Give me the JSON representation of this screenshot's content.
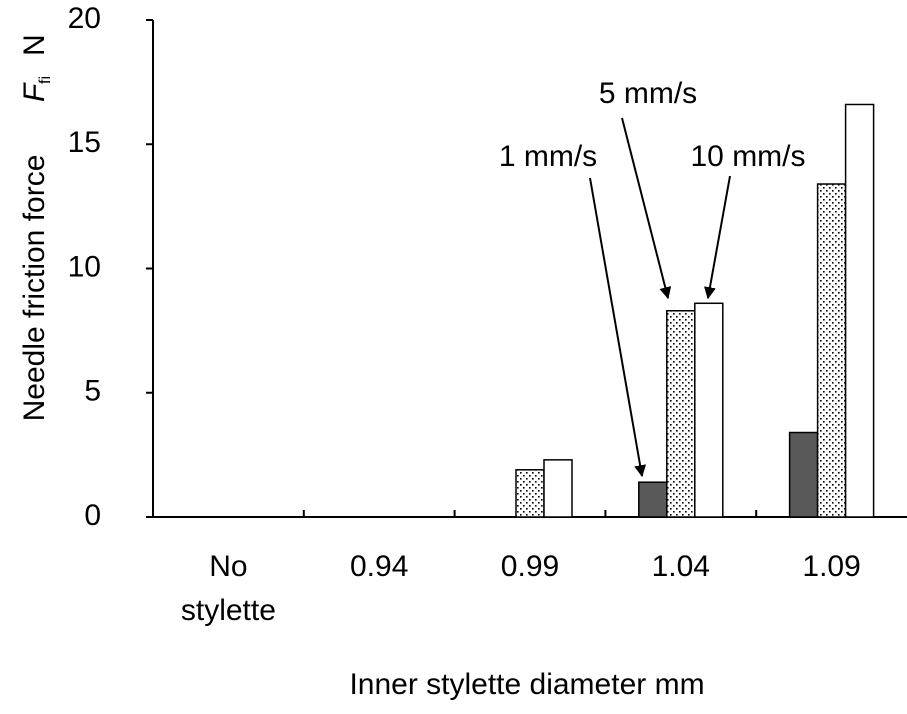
{
  "chart_data": {
    "type": "bar",
    "y_label": "Needle friction force",
    "y_label_symbol": "F",
    "y_label_subscript": "fi",
    "y_label_unit": "N",
    "x_label": "Inner stylette diameter   mm",
    "categories": [
      [
        "No",
        "stylette"
      ],
      "0.94",
      "0.99",
      "1.04",
      "1.09"
    ],
    "series": [
      {
        "name": "1 mm/s",
        "color": "#595959",
        "values": [
          0,
          0,
          0,
          1.4,
          3.4
        ]
      },
      {
        "name": "5 mm/s",
        "color": "#ffffff",
        "pattern": "dots",
        "values": [
          0,
          0,
          1.9,
          8.3,
          13.4
        ]
      },
      {
        "name": "10 mm/s",
        "color": "#ffffff",
        "values": [
          0,
          0,
          2.3,
          8.6,
          16.6
        ]
      }
    ],
    "ylim": [
      0,
      20
    ],
    "yticks": [
      0,
      5,
      10,
      15,
      20
    ]
  }
}
